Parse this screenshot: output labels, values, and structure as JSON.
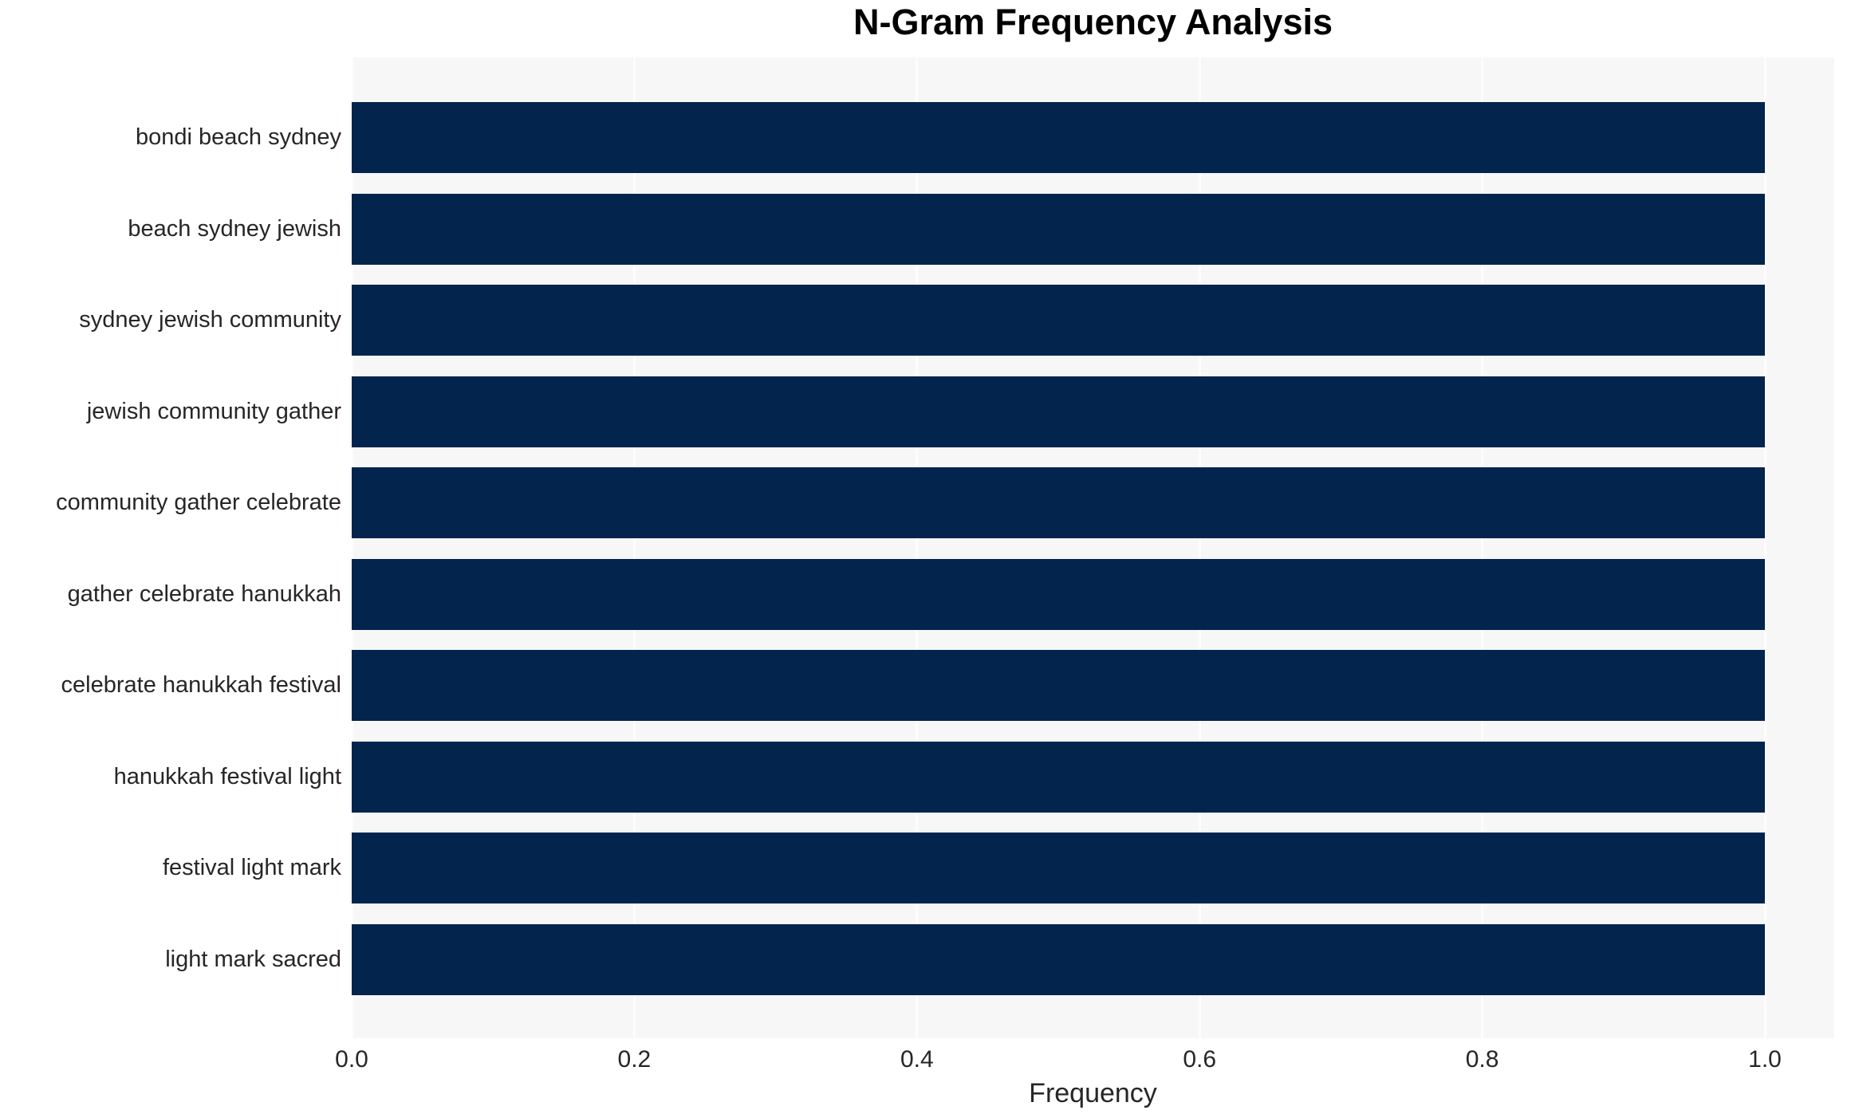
{
  "chart_data": {
    "type": "bar",
    "orientation": "horizontal",
    "title": "N-Gram Frequency Analysis",
    "xlabel": "Frequency",
    "ylabel": "",
    "categories": [
      "bondi beach sydney",
      "beach sydney jewish",
      "sydney jewish community",
      "jewish community gather",
      "community gather celebrate",
      "gather celebrate hanukkah",
      "celebrate hanukkah festival",
      "hanukkah festival light",
      "festival light mark",
      "light mark sacred"
    ],
    "values": [
      1.0,
      1.0,
      1.0,
      1.0,
      1.0,
      1.0,
      1.0,
      1.0,
      1.0,
      1.0
    ],
    "x_ticks": [
      0.0,
      0.2,
      0.4,
      0.6,
      0.8,
      1.0
    ],
    "x_tick_labels": [
      "0.0",
      "0.2",
      "0.4",
      "0.6",
      "0.8",
      "1.0"
    ],
    "xlim": [
      0,
      1.049
    ],
    "grid": "vertical-white-lines-at-ticks",
    "legend": "none",
    "colors": {
      "bar": "#03244d",
      "plot_background": "#f7f7f7",
      "figure_background": "#ffffff",
      "grid_line": "#fdfdfd",
      "text": "#262626",
      "title": "#000000"
    }
  }
}
